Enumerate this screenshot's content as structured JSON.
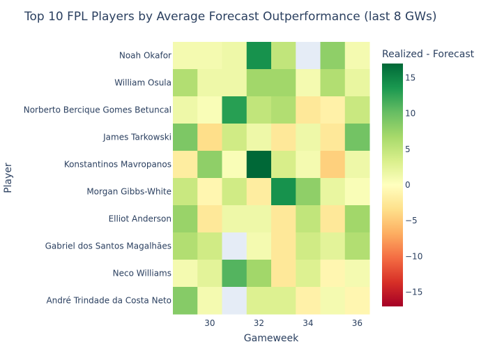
{
  "chart_data": {
    "type": "heatmap",
    "title": "Top 10 FPL Players by Average Forecast Outperformance (last 8 GWs)",
    "xlabel": "Gameweek",
    "ylabel": "Player",
    "x": [
      29,
      30,
      31,
      32,
      33,
      34,
      35,
      36
    ],
    "x_ticks": [
      30,
      32,
      34,
      36
    ],
    "players": [
      "Noah Okafor",
      "William Osula",
      "Norberto Bercique Gomes Betuncal",
      "James Tarkowski",
      "Konstantinos Mavropanos",
      "Morgan Gibbs-White",
      "Elliot Anderson",
      "Gabriel dos Santos Magalhães",
      "Neco Williams",
      "André Trindade da Costa Neto"
    ],
    "z": [
      [
        1,
        1,
        1.5,
        14,
        5,
        null,
        8,
        1
      ],
      [
        6,
        1.5,
        1.5,
        7,
        7,
        1,
        6,
        2
      ],
      [
        1.5,
        0.5,
        13,
        5,
        6,
        -2.5,
        -1.5,
        4.5
      ],
      [
        9,
        -3.5,
        4,
        1.5,
        -2.5,
        1.5,
        -2.5,
        9.5
      ],
      [
        -2,
        8,
        0.5,
        17,
        3.5,
        1,
        -4.5,
        1.5
      ],
      [
        4.5,
        -1,
        4,
        -2,
        14,
        8,
        2,
        0.5
      ],
      [
        7.5,
        -2.5,
        1.5,
        1.5,
        -2.5,
        5,
        -2.5,
        7
      ],
      [
        6,
        4,
        null,
        1,
        -2.5,
        4,
        2.5,
        6
      ],
      [
        1,
        2.5,
        11,
        7,
        -2.5,
        3,
        -1,
        1
      ],
      [
        8.5,
        1,
        null,
        3,
        3,
        -1.5,
        1,
        -1
      ]
    ],
    "colorscale": {
      "name": "RdYlGn",
      "title": "Realized - Forecast",
      "zmin": -17,
      "zmax": 17,
      "ticks": [
        15,
        10,
        5,
        0,
        -5,
        -10,
        -15
      ],
      "tick_labels": [
        "15",
        "10",
        "5",
        "0",
        "−5",
        "−10",
        "−15"
      ]
    },
    "missing_color": "#e5ecf6"
  }
}
